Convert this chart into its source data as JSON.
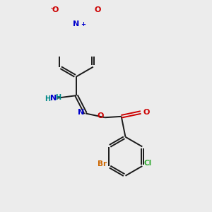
{
  "bg_color": "#ececec",
  "bond_color": "#1a1a1a",
  "atom_colors": {
    "Br": "#cc6600",
    "Cl": "#33aa33",
    "N": "#0000cc",
    "O": "#cc0000",
    "H_N": "#008888"
  },
  "figsize": [
    3.0,
    3.0
  ],
  "dpi": 100
}
